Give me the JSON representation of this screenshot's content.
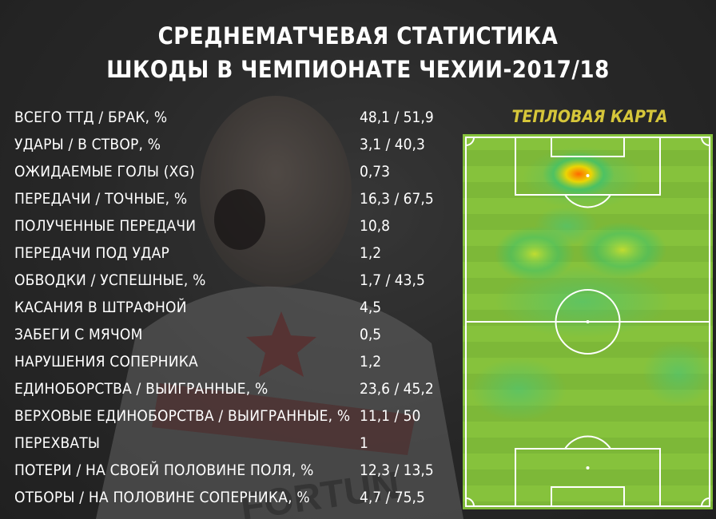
{
  "title_lines": [
    "СРЕДНЕМАТЧЕВАЯ СТАТИСТИКА",
    "ШКОДЫ В ЧЕМПИОНАТЕ ЧЕХИИ-2017/18"
  ],
  "heatmap_title": "ТЕПЛОВАЯ КАРТА",
  "background_logo_text": "FORTUN",
  "stats": [
    {
      "label": "ВСЕГО ТТД / БРАК, %",
      "value": "48,1 / 51,9"
    },
    {
      "label": "УДАРЫ / В СТВОР, %",
      "value": "3,1 / 40,3"
    },
    {
      "label": "ОЖИДАЕМЫЕ ГОЛЫ (XG)",
      "value": "0,73"
    },
    {
      "label": "ПЕРЕДАЧИ / ТОЧНЫЕ, %",
      "value": "16,3 / 67,5"
    },
    {
      "label": "ПОЛУЧЕННЫЕ ПЕРЕДАЧИ",
      "value": "10,8"
    },
    {
      "label": "ПЕРЕДАЧИ ПОД УДАР",
      "value": "1,2"
    },
    {
      "label": "ОБВОДКИ / УСПЕШНЫЕ, %",
      "value": "1,7 / 43,5"
    },
    {
      "label": "КАСАНИЯ В ШТРАФНОЙ",
      "value": "4,5"
    },
    {
      "label": "ЗАБЕГИ С МЯЧОМ",
      "value": "0,5"
    },
    {
      "label": "НАРУШЕНИЯ СОПЕРНИКА",
      "value": "1,2"
    },
    {
      "label": "ЕДИНОБОРСТВА / ВЫИГРАННЫЕ, %",
      "value": "23,6 / 45,2"
    },
    {
      "label": "ВЕРХОВЫЕ ЕДИНОБОРСТВА / ВЫИГРАННЫЕ, %",
      "value": "11,1 / 50"
    },
    {
      "label": "ПЕРЕХВАТЫ",
      "value": "1"
    },
    {
      "label": "ПОТЕРИ / НА СВОЕЙ ПОЛОВИНЕ ПОЛЯ, %",
      "value": "12,3 / 13,5"
    },
    {
      "label": "ОТБОРЫ / НА ПОЛОВИНЕ СОПЕРНИКА, %",
      "value": "4,7 / 75,5"
    }
  ],
  "colors": {
    "heatmap_title": "#d6c63a",
    "pitch_base": "#86c23c",
    "pitch_line": "#ffffff",
    "hot": "#ff6a00",
    "warm": "#f2d600",
    "cool": "#3fc26a"
  }
}
